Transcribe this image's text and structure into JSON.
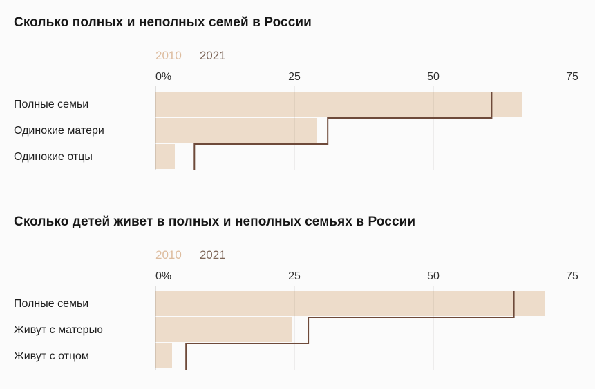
{
  "colors": {
    "background": "#fbfbfb",
    "bar_2010": "#eddcca",
    "line_2021": "#6e4a3a"
  },
  "chart_data": [
    {
      "type": "bar",
      "orientation": "horizontal",
      "title": "Сколько полных и неполных семей в России",
      "categories": [
        "Полные семьи",
        "Одинокие матери",
        "Одинокие отцы"
      ],
      "series": [
        {
          "name": "2010",
          "style": "bar",
          "color": "#eddcca",
          "label_color": "#ddbc9e",
          "values": [
            66,
            29,
            3.5
          ]
        },
        {
          "name": "2021",
          "style": "step-line",
          "color": "#6e4a3a",
          "label_color": "#7d6557",
          "values": [
            60.5,
            31,
            7
          ]
        }
      ],
      "xlabel": "",
      "ylabel": "",
      "xlim": [
        0,
        75
      ],
      "ticks": [
        {
          "value": 0,
          "label": "0%"
        },
        {
          "value": 25,
          "label": "25"
        },
        {
          "value": 50,
          "label": "50"
        },
        {
          "value": 75,
          "label": "75"
        }
      ],
      "grid": true,
      "legend_position": "top"
    },
    {
      "type": "bar",
      "orientation": "horizontal",
      "title": "Сколько детей живет в полных и неполных семьях в России",
      "categories": [
        "Полные семьи",
        "Живут с матерью",
        "Живут с отцом"
      ],
      "series": [
        {
          "name": "2010",
          "style": "bar",
          "color": "#eddcca",
          "label_color": "#ddbc9e",
          "values": [
            70,
            24.5,
            3
          ]
        },
        {
          "name": "2021",
          "style": "step-line",
          "color": "#6e4a3a",
          "label_color": "#7d6557",
          "values": [
            64.5,
            27.5,
            5.5
          ]
        }
      ],
      "xlabel": "",
      "ylabel": "",
      "xlim": [
        0,
        75
      ],
      "ticks": [
        {
          "value": 0,
          "label": "0%"
        },
        {
          "value": 25,
          "label": "25"
        },
        {
          "value": 50,
          "label": "50"
        },
        {
          "value": 75,
          "label": "75"
        }
      ],
      "grid": true,
      "legend_position": "top"
    }
  ]
}
